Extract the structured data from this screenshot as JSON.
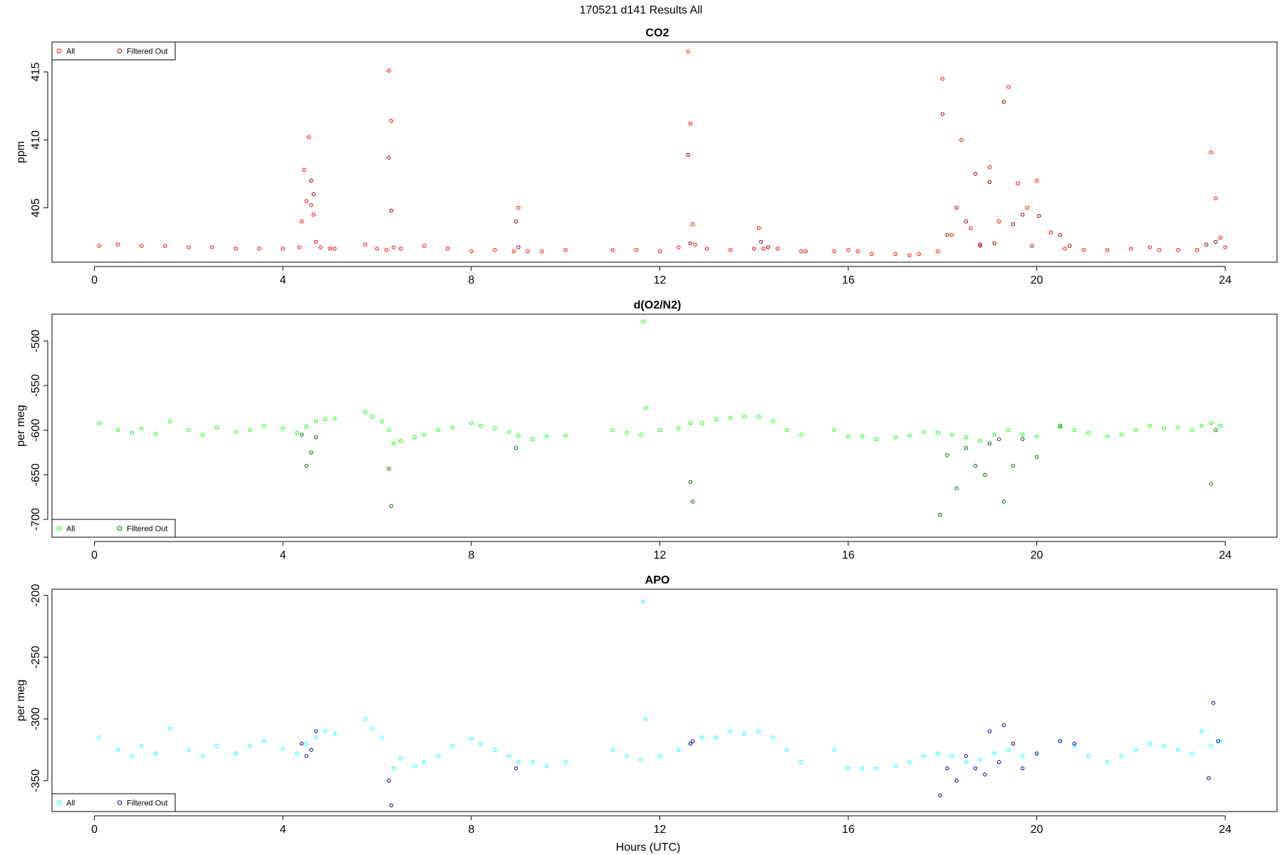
{
  "figure": {
    "title": "170521   d141   Results All",
    "xlabel": "Hours (UTC)"
  },
  "chart_data": [
    {
      "type": "scatter",
      "title": "CO2",
      "ylabel": "ppm",
      "xlim": [
        -0.9,
        25.1
      ],
      "ylim": [
        401.0,
        417.2
      ],
      "xticks": [
        0,
        4,
        8,
        12,
        16,
        20,
        24
      ],
      "xtick_labels": [
        "0",
        "4",
        "8",
        "12",
        "16",
        "20",
        "24"
      ],
      "yticks": [
        405,
        410,
        415
      ],
      "ytick_labels": [
        "405",
        "410",
        "415"
      ],
      "grid": false,
      "legend_position": "top-left",
      "colors": {
        "all": "#ff0000",
        "filtered": "#8b0000"
      },
      "series": [
        {
          "name": "All",
          "x": [
            0.1,
            0.5,
            1.0,
            1.5,
            2.0,
            2.5,
            3.0,
            3.5,
            4.0,
            4.35,
            4.4,
            4.45,
            4.5,
            4.55,
            4.6,
            4.65,
            4.7,
            4.8,
            5.0,
            5.1,
            5.75,
            6.0,
            6.2,
            6.25,
            6.3,
            6.35,
            6.5,
            7.0,
            7.5,
            8.0,
            8.5,
            8.9,
            9.0,
            9.2,
            9.5,
            10.0,
            11.0,
            11.5,
            12.0,
            12.4,
            12.6,
            12.65,
            12.7,
            12.75,
            13.0,
            13.5,
            14.0,
            14.1,
            14.2,
            14.5,
            15.0,
            15.1,
            15.7,
            16.0,
            16.2,
            16.5,
            17.0,
            17.3,
            17.5,
            17.9,
            18.0,
            18.2,
            18.4,
            18.6,
            18.8,
            19.0,
            19.2,
            19.4,
            19.6,
            19.8,
            20.0,
            20.3,
            20.6,
            21.0,
            21.5,
            22.0,
            22.4,
            22.6,
            23.0,
            23.4,
            23.7,
            23.8,
            23.9,
            24.0
          ],
          "y": [
            402.2,
            402.3,
            402.2,
            402.2,
            402.1,
            402.1,
            402.0,
            402.0,
            402.0,
            402.1,
            404.0,
            407.8,
            405.5,
            410.2,
            405.2,
            404.5,
            402.5,
            402.1,
            402.0,
            402.0,
            402.3,
            402.0,
            401.9,
            415.1,
            411.4,
            402.1,
            402.0,
            402.2,
            402.0,
            401.8,
            401.9,
            401.8,
            405.0,
            401.8,
            401.8,
            401.9,
            401.9,
            401.9,
            401.8,
            402.1,
            416.5,
            411.2,
            403.8,
            402.3,
            402.0,
            401.9,
            402.0,
            403.5,
            402.0,
            402.0,
            401.8,
            401.8,
            401.8,
            401.9,
            401.8,
            401.6,
            401.6,
            401.5,
            401.6,
            401.8,
            414.5,
            403.0,
            410.0,
            403.5,
            402.2,
            408.0,
            404.0,
            413.9,
            406.8,
            405.0,
            407.0,
            403.2,
            402.0,
            401.9,
            401.9,
            402.0,
            402.1,
            401.9,
            401.9,
            401.9,
            409.1,
            405.7,
            402.8,
            402.1
          ]
        },
        {
          "name": "Filtered Out",
          "x": [
            4.6,
            4.65,
            6.25,
            6.3,
            8.95,
            9.0,
            12.6,
            12.65,
            14.15,
            14.3,
            18.0,
            18.1,
            18.3,
            18.5,
            18.7,
            18.8,
            19.0,
            19.1,
            19.3,
            19.5,
            19.7,
            19.9,
            20.05,
            20.5,
            20.7,
            23.6,
            23.8
          ],
          "y": [
            407.0,
            406.0,
            408.7,
            404.8,
            404.0,
            402.1,
            408.9,
            402.4,
            402.5,
            402.1,
            411.9,
            403.0,
            405.0,
            404.0,
            407.5,
            402.3,
            406.9,
            402.4,
            412.8,
            403.8,
            404.5,
            402.2,
            404.4,
            403.0,
            402.2,
            402.3,
            402.5
          ]
        }
      ]
    },
    {
      "type": "scatter",
      "title": "d(O2/N2)",
      "ylabel": "per meg",
      "xlim": [
        -0.9,
        25.1
      ],
      "ylim": [
        -720,
        -470
      ],
      "xticks": [
        0,
        4,
        8,
        12,
        16,
        20,
        24
      ],
      "xtick_labels": [
        "0",
        "4",
        "8",
        "12",
        "16",
        "20",
        "24"
      ],
      "yticks": [
        -700,
        -650,
        -600,
        -550,
        -500
      ],
      "ytick_labels": [
        "-700",
        "-650",
        "-600",
        "-550",
        "-500"
      ],
      "grid": false,
      "legend_position": "bottom-left",
      "colors": {
        "all": "#00ff00",
        "filtered": "#006400"
      },
      "series": [
        {
          "name": "All",
          "x": [
            0.1,
            0.5,
            0.8,
            1.0,
            1.3,
            1.6,
            2.0,
            2.3,
            2.6,
            3.0,
            3.3,
            3.6,
            4.0,
            4.3,
            4.5,
            4.7,
            4.9,
            5.1,
            5.75,
            5.9,
            6.1,
            6.25,
            6.35,
            6.5,
            6.8,
            7.0,
            7.3,
            7.6,
            8.0,
            8.2,
            8.5,
            8.8,
            9.0,
            9.3,
            9.6,
            10.0,
            11.0,
            11.3,
            11.6,
            11.65,
            11.7,
            12.0,
            12.4,
            12.65,
            12.9,
            13.2,
            13.5,
            13.8,
            14.1,
            14.4,
            14.7,
            15.0,
            15.7,
            16.0,
            16.3,
            16.6,
            17.0,
            17.3,
            17.6,
            17.9,
            18.2,
            18.5,
            18.8,
            19.1,
            19.4,
            19.7,
            20.0,
            20.5,
            20.8,
            21.1,
            21.5,
            21.8,
            22.1,
            22.4,
            22.7,
            23.0,
            23.3,
            23.5,
            23.7,
            23.9
          ],
          "y": [
            -592,
            -600,
            -603,
            -598,
            -604,
            -590,
            -600,
            -605,
            -597,
            -602,
            -600,
            -595,
            -598,
            -603,
            -596,
            -590,
            -588,
            -587,
            -580,
            -585,
            -590,
            -600,
            -615,
            -612,
            -608,
            -605,
            -600,
            -597,
            -592,
            -595,
            -598,
            -602,
            -606,
            -610,
            -607,
            -606,
            -600,
            -603,
            -605,
            -478,
            -575,
            -600,
            -598,
            -592,
            -592,
            -588,
            -586,
            -585,
            -585,
            -590,
            -600,
            -605,
            -600,
            -607,
            -607,
            -610,
            -608,
            -606,
            -602,
            -603,
            -605,
            -608,
            -612,
            -605,
            -600,
            -605,
            -607,
            -597,
            -600,
            -603,
            -607,
            -605,
            -600,
            -595,
            -598,
            -597,
            -600,
            -595,
            -592,
            -595
          ]
        },
        {
          "name": "Filtered Out",
          "x": [
            4.4,
            4.5,
            4.6,
            4.7,
            6.25,
            6.3,
            8.95,
            12.65,
            12.7,
            17.95,
            18.1,
            18.3,
            18.5,
            18.7,
            18.9,
            19.0,
            19.2,
            19.3,
            19.5,
            19.7,
            20.0,
            20.5,
            23.7,
            23.8
          ],
          "y": [
            -605,
            -640,
            -625,
            -608,
            -643,
            -685,
            -620,
            -658,
            -680,
            -695,
            -628,
            -665,
            -620,
            -640,
            -650,
            -615,
            -610,
            -680,
            -640,
            -610,
            -630,
            -595,
            -660,
            -600
          ]
        }
      ]
    },
    {
      "type": "scatter",
      "title": "APO",
      "ylabel": "per meg",
      "xlim": [
        -0.9,
        25.1
      ],
      "ylim": [
        -375,
        -195
      ],
      "xticks": [
        0,
        4,
        8,
        12,
        16,
        20,
        24
      ],
      "xtick_labels": [
        "0",
        "4",
        "8",
        "12",
        "16",
        "20",
        "24"
      ],
      "yticks": [
        -350,
        -300,
        -250,
        -200
      ],
      "ytick_labels": [
        "-350",
        "-300",
        "-250",
        "-200"
      ],
      "grid": false,
      "legend_position": "bottom-left",
      "colors": {
        "all": "#00ffff",
        "filtered": "#00008b"
      },
      "series": [
        {
          "name": "All",
          "x": [
            0.1,
            0.5,
            0.8,
            1.0,
            1.3,
            1.6,
            2.0,
            2.3,
            2.6,
            3.0,
            3.3,
            3.6,
            4.0,
            4.3,
            4.5,
            4.7,
            4.9,
            5.1,
            5.75,
            5.9,
            6.1,
            6.35,
            6.5,
            6.8,
            7.0,
            7.3,
            7.6,
            8.0,
            8.2,
            8.5,
            8.8,
            9.0,
            9.3,
            9.6,
            10.0,
            11.0,
            11.3,
            11.6,
            11.65,
            11.7,
            12.0,
            12.4,
            12.9,
            13.2,
            13.5,
            13.8,
            14.1,
            14.4,
            14.7,
            15.0,
            15.7,
            16.0,
            16.3,
            16.6,
            17.0,
            17.3,
            17.6,
            17.9,
            18.2,
            18.5,
            18.8,
            19.1,
            19.4,
            19.7,
            20.0,
            20.5,
            20.8,
            21.1,
            21.5,
            21.8,
            22.1,
            22.4,
            22.7,
            23.0,
            23.3,
            23.5,
            23.7,
            23.9
          ],
          "y": [
            -315,
            -325,
            -330,
            -322,
            -328,
            -308,
            -325,
            -330,
            -322,
            -328,
            -322,
            -318,
            -324,
            -328,
            -320,
            -315,
            -310,
            -312,
            -300,
            -308,
            -315,
            -340,
            -332,
            -338,
            -335,
            -330,
            -322,
            -316,
            -320,
            -325,
            -330,
            -335,
            -335,
            -338,
            -335,
            -325,
            -330,
            -333,
            -205,
            -300,
            -330,
            -325,
            -315,
            -315,
            -310,
            -312,
            -310,
            -315,
            -325,
            -335,
            -325,
            -340,
            -340,
            -340,
            -338,
            -335,
            -330,
            -328,
            -330,
            -335,
            -333,
            -328,
            -325,
            -330,
            -328,
            -318,
            -322,
            -330,
            -335,
            -330,
            -325,
            -320,
            -322,
            -325,
            -328,
            -310,
            -322,
            -318
          ]
        },
        {
          "name": "Filtered Out",
          "x": [
            4.4,
            4.5,
            4.6,
            4.7,
            6.25,
            6.3,
            8.95,
            12.65,
            12.7,
            17.95,
            18.1,
            18.3,
            18.5,
            18.7,
            18.9,
            19.0,
            19.2,
            19.3,
            19.5,
            19.7,
            20.0,
            20.5,
            20.8,
            23.65,
            23.75,
            23.85
          ],
          "y": [
            -320,
            -330,
            -325,
            -310,
            -350,
            -370,
            -340,
            -320,
            -318,
            -362,
            -340,
            -350,
            -330,
            -340,
            -345,
            -310,
            -335,
            -305,
            -320,
            -340,
            -328,
            -318,
            -320,
            -348,
            -287,
            -318
          ]
        }
      ]
    }
  ]
}
